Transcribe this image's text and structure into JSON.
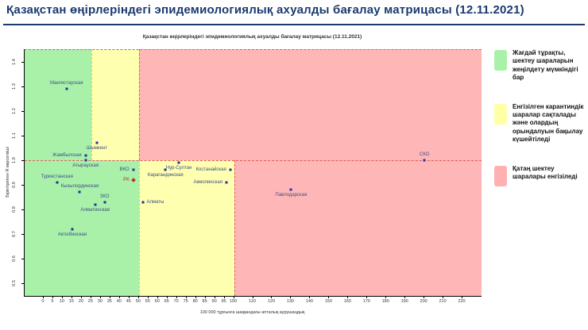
{
  "header": {
    "title": "Қазақстан өңірлеріндегі эпидемиологиялық ахуалды бағалау матрицасы  (12.11.2021)"
  },
  "chart_data": {
    "type": "scatter",
    "title": "Қазақстан өңірлеріндегі эпидемиологиялық ахуалды бағалау матрицасы (12.11.2021)",
    "xlabel": "100 000 тұрғынға шаққандағы апталық аурушаңдық",
    "ylabel": "Біріктірілген R көрсеткіші",
    "xlim": [
      -10,
      230
    ],
    "ylim": [
      0.45,
      1.45
    ],
    "grid": false,
    "legend_position": "right",
    "x_ticks": [
      0,
      5,
      10,
      15,
      20,
      25,
      30,
      35,
      40,
      45,
      50,
      55,
      60,
      65,
      70,
      75,
      80,
      85,
      90,
      95,
      100,
      110,
      120,
      130,
      140,
      150,
      160,
      170,
      180,
      190,
      200,
      210,
      220
    ],
    "y_ticks": [
      0.5,
      0.6,
      0.7,
      0.8,
      0.9,
      1.0,
      1.1,
      1.2,
      1.3,
      1.4
    ],
    "zones": [
      {
        "level": "green-upper",
        "color": "green",
        "x": [
          -10,
          25
        ],
        "R": [
          1.0,
          1.45
        ]
      },
      {
        "level": "yellow-upper",
        "color": "yellow",
        "x": [
          25,
          50
        ],
        "R": [
          1.0,
          1.45
        ]
      },
      {
        "level": "red-upper",
        "color": "red",
        "x": [
          50,
          230
        ],
        "R": [
          1.0,
          1.45
        ]
      },
      {
        "level": "green-lower",
        "color": "green",
        "x": [
          -10,
          50
        ],
        "R": [
          0.45,
          1.0
        ]
      },
      {
        "level": "yellow-lower",
        "color": "yellow",
        "x": [
          50,
          100
        ],
        "R": [
          0.45,
          1.0
        ]
      },
      {
        "level": "red-lower",
        "color": "red",
        "x": [
          100,
          230
        ],
        "R": [
          0.45,
          1.0
        ]
      }
    ],
    "boundaries": [
      {
        "orient": "h",
        "R": 1.0,
        "x": [
          -10,
          230
        ],
        "color": "red_dash"
      },
      {
        "orient": "h",
        "R": 1.45,
        "x": [
          -10,
          230
        ],
        "color": "red_dash"
      },
      {
        "orient": "v",
        "x": 25,
        "R": [
          1.0,
          1.45
        ],
        "color": "yellow_dash"
      },
      {
        "orient": "v",
        "x": 50,
        "R": [
          1.0,
          1.45
        ],
        "color": "red_dash"
      },
      {
        "orient": "v",
        "x": 50,
        "R": [
          0.45,
          1.0
        ],
        "color": "yellow_dash"
      },
      {
        "orient": "v",
        "x": 100,
        "R": [
          0.45,
          1.0
        ],
        "color": "red_dash"
      }
    ],
    "points": [
      {
        "name": "Мангистауская",
        "x": 12,
        "R": 1.29,
        "label_pos": "above"
      },
      {
        "name": "Шымкент",
        "x": 28,
        "R": 1.07,
        "label_pos": "below"
      },
      {
        "name": "Жамбылская",
        "x": 22,
        "R": 1.02,
        "label_pos": "left"
      },
      {
        "name": "Атырауская",
        "x": 22,
        "R": 1.0,
        "label_pos": "below"
      },
      {
        "name": "ВКО",
        "x": 47,
        "R": 0.96,
        "label_pos": "left"
      },
      {
        "name": "РК",
        "x": 47,
        "R": 0.92,
        "label_pos": "left",
        "marker": "diamond"
      },
      {
        "name": "Туркестанская",
        "x": 7,
        "R": 0.91,
        "label_pos": "above"
      },
      {
        "name": "Кызылординская",
        "x": 19,
        "R": 0.87,
        "label_pos": "above"
      },
      {
        "name": "ЗКО",
        "x": 32,
        "R": 0.83,
        "label_pos": "above"
      },
      {
        "name": "Алматинская",
        "x": 27,
        "R": 0.82,
        "label_pos": "below"
      },
      {
        "name": "Актюбинская",
        "x": 15,
        "R": 0.72,
        "label_pos": "below"
      },
      {
        "name": "Нур-Султан",
        "x": 71,
        "R": 0.99,
        "label_pos": "below"
      },
      {
        "name": "Карагандинская",
        "x": 64,
        "R": 0.96,
        "label_pos": "below"
      },
      {
        "name": "Костанайская",
        "x": 98,
        "R": 0.96,
        "label_pos": "left"
      },
      {
        "name": "Акмолинская",
        "x": 96,
        "R": 0.91,
        "label_pos": "left"
      },
      {
        "name": "Алматы",
        "x": 52,
        "R": 0.83,
        "label_pos": "right"
      },
      {
        "name": "Павлодарская",
        "x": 130,
        "R": 0.88,
        "label_pos": "below"
      },
      {
        "name": "СКО",
        "x": 200,
        "R": 1.0,
        "label_pos": "above"
      }
    ]
  },
  "legend": {
    "items": [
      {
        "color": "#a9f1a9",
        "text": "Жағдай тұрақты, шектеу шараларын жеңілдету мүмкіндігі бар"
      },
      {
        "color": "#ffffa6",
        "text": "Енгізілген карантиндік шаралар сақталады және олардың орындалуын бақылау күшейтіледі"
      },
      {
        "color": "#ffb0b0",
        "text": "Қатаң шектеу шаралары енгізіледі"
      }
    ]
  },
  "colors": {
    "accent": "#1b3a70",
    "zone_green": "#a9f1a9",
    "zone_yellow": "#ffffb0",
    "zone_red": "#ffb6b6",
    "red_dash": "#e05c5c",
    "yellow_dash": "#d8ce3e",
    "point": "#25309c",
    "point_label": "#3d4e86",
    "rk_point": "#b73232"
  }
}
